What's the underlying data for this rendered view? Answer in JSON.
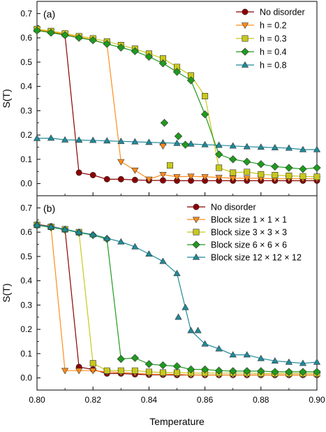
{
  "chart_data": [
    {
      "type": "line",
      "panel_label": "(a)",
      "xlabel": "",
      "ylabel": "S(T)",
      "xlim": [
        0.8,
        0.9
      ],
      "ylim": [
        -0.05,
        0.75
      ],
      "x_ticks": [],
      "y_ticks": [
        "0.0",
        "0.1",
        "0.2",
        "0.3",
        "0.4",
        "0.5",
        "0.6",
        "0.7"
      ],
      "y_tick_values": [
        0.0,
        0.1,
        0.2,
        0.3,
        0.4,
        0.5,
        0.6,
        0.7
      ],
      "grid": false,
      "legend_position": "top-right",
      "series": [
        {
          "name": "No disorder",
          "color": "#8b0000",
          "marker": "circle",
          "x": [
            0.8,
            0.805,
            0.81,
            0.815,
            0.82,
            0.825,
            0.83,
            0.835,
            0.84,
            0.845,
            0.85,
            0.855,
            0.86,
            0.865,
            0.87,
            0.875,
            0.88,
            0.885,
            0.89,
            0.895,
            0.9
          ],
          "y": [
            0.632,
            0.624,
            0.612,
            0.045,
            0.035,
            0.018,
            0.018,
            0.015,
            0.013,
            0.013,
            0.012,
            0.012,
            0.012,
            0.012,
            0.012,
            0.012,
            0.012,
            0.012,
            0.012,
            0.012,
            0.012
          ]
        },
        {
          "name": "h = 0.2",
          "color": "#ff8c1a",
          "marker": "triangle-down",
          "x": [
            0.8,
            0.805,
            0.81,
            0.815,
            0.82,
            0.825,
            0.83,
            0.835,
            0.84,
            0.845,
            0.85,
            0.855,
            0.86,
            0.865,
            0.87,
            0.875,
            0.88,
            0.885,
            0.89,
            0.895,
            0.9
          ],
          "y": [
            0.633,
            0.625,
            0.615,
            0.603,
            0.592,
            0.575,
            0.09,
            0.055,
            0.018,
            0.037,
            0.028,
            0.03,
            0.028,
            0.025,
            0.022,
            0.022,
            0.022,
            0.02,
            0.02,
            0.02,
            0.02
          ]
        },
        {
          "name": "h = 0.3",
          "color": "#c8c81e",
          "marker": "square",
          "x": [
            0.8,
            0.805,
            0.81,
            0.815,
            0.82,
            0.825,
            0.83,
            0.835,
            0.84,
            0.845,
            0.85,
            0.855,
            0.86,
            0.865,
            0.87,
            0.875,
            0.88,
            0.885,
            0.89,
            0.895,
            0.9
          ],
          "y": [
            0.636,
            0.628,
            0.618,
            0.607,
            0.598,
            0.585,
            0.57,
            0.555,
            0.535,
            0.515,
            0.48,
            0.445,
            0.36,
            0.065,
            0.045,
            0.048,
            0.038,
            0.035,
            0.032,
            0.03,
            0.028
          ]
        },
        {
          "name": "h = 0.4",
          "color": "#1f9a1f",
          "marker": "diamond",
          "x": [
            0.8,
            0.805,
            0.81,
            0.815,
            0.82,
            0.825,
            0.83,
            0.835,
            0.84,
            0.845,
            0.85,
            0.855,
            0.86,
            0.865,
            0.87,
            0.875,
            0.88,
            0.885,
            0.89,
            0.895,
            0.9
          ],
          "y": [
            0.63,
            0.621,
            0.611,
            0.6,
            0.59,
            0.575,
            0.56,
            0.545,
            0.522,
            0.495,
            0.46,
            0.425,
            0.285,
            0.12,
            0.1,
            0.09,
            0.08,
            0.07,
            0.065,
            0.06,
            0.065
          ]
        },
        {
          "name": "h = 0.8",
          "color": "#1f8a9a",
          "marker": "triangle-up",
          "x": [
            0.8,
            0.805,
            0.81,
            0.815,
            0.82,
            0.825,
            0.83,
            0.835,
            0.84,
            0.845,
            0.85,
            0.855,
            0.86,
            0.865,
            0.87,
            0.875,
            0.88,
            0.885,
            0.89,
            0.895,
            0.9
          ],
          "y": [
            0.186,
            0.187,
            0.18,
            0.179,
            0.178,
            0.176,
            0.174,
            0.172,
            0.17,
            0.168,
            0.166,
            0.163,
            0.16,
            0.158,
            0.155,
            0.152,
            0.15,
            0.148,
            0.146,
            0.14,
            0.14
          ]
        }
      ],
      "extra_markers": [
        {
          "series_index": 1,
          "x": 0.845,
          "y": 0.155
        },
        {
          "series_index": 2,
          "x": 0.8475,
          "y": 0.075
        },
        {
          "series_index": 3,
          "x": 0.8455,
          "y": 0.25
        },
        {
          "series_index": 3,
          "x": 0.8505,
          "y": 0.195
        },
        {
          "series_index": 3,
          "x": 0.853,
          "y": 0.16
        }
      ]
    },
    {
      "type": "line",
      "panel_label": "(b)",
      "xlabel": "Temperature",
      "ylabel": "S(T)",
      "xlim": [
        0.8,
        0.9
      ],
      "ylim": [
        -0.05,
        0.75
      ],
      "x_ticks": [
        "0.80",
        "0.82",
        "0.84",
        "0.86",
        "0.88",
        "0.90"
      ],
      "x_tick_values": [
        0.8,
        0.82,
        0.84,
        0.86,
        0.88,
        0.9
      ],
      "y_ticks": [
        "0.0",
        "0.1",
        "0.2",
        "0.3",
        "0.4",
        "0.5",
        "0.6",
        "0.7"
      ],
      "y_tick_values": [
        0.0,
        0.1,
        0.2,
        0.3,
        0.4,
        0.5,
        0.6,
        0.7
      ],
      "grid": false,
      "legend_position": "top-right",
      "series": [
        {
          "name": "No disorder",
          "color": "#8b0000",
          "marker": "circle",
          "x": [
            0.8,
            0.805,
            0.81,
            0.815,
            0.82,
            0.825,
            0.83,
            0.835,
            0.84,
            0.845,
            0.85,
            0.855,
            0.86,
            0.865,
            0.87,
            0.875,
            0.88,
            0.885,
            0.89,
            0.895,
            0.9
          ],
          "y": [
            0.632,
            0.624,
            0.612,
            0.045,
            0.035,
            0.018,
            0.018,
            0.015,
            0.013,
            0.013,
            0.012,
            0.012,
            0.012,
            0.012,
            0.012,
            0.012,
            0.012,
            0.012,
            0.012,
            0.012,
            0.012
          ]
        },
        {
          "name": "Block size 1 × 1 × 1",
          "color": "#ff8c1a",
          "marker": "triangle-down",
          "x": [
            0.8,
            0.805,
            0.81,
            0.815,
            0.82,
            0.825,
            0.83,
            0.835,
            0.84,
            0.845,
            0.85,
            0.855,
            0.86,
            0.865,
            0.87,
            0.875,
            0.88,
            0.885,
            0.89,
            0.895,
            0.9
          ],
          "y": [
            0.63,
            0.62,
            0.03,
            0.03,
            0.03,
            0.025,
            0.022,
            0.02,
            0.015,
            0.015,
            0.015,
            0.012,
            0.012,
            0.012,
            0.012,
            0.012,
            0.012,
            0.012,
            0.012,
            0.012,
            0.012
          ]
        },
        {
          "name": "Block size 3 × 3 × 3",
          "color": "#c8c81e",
          "marker": "square",
          "x": [
            0.8,
            0.805,
            0.81,
            0.815,
            0.82,
            0.825,
            0.83,
            0.835,
            0.84,
            0.845,
            0.85,
            0.855,
            0.86,
            0.865,
            0.87,
            0.875,
            0.88,
            0.885,
            0.89,
            0.895,
            0.9
          ],
          "y": [
            0.63,
            0.622,
            0.612,
            0.6,
            0.06,
            0.03,
            0.03,
            0.03,
            0.025,
            0.022,
            0.022,
            0.02,
            0.02,
            0.02,
            0.02,
            0.02,
            0.018,
            0.018,
            0.018,
            0.018,
            0.018
          ]
        },
        {
          "name": "Block size 6 × 6 × 6",
          "color": "#1f9a1f",
          "marker": "diamond",
          "x": [
            0.8,
            0.805,
            0.81,
            0.815,
            0.82,
            0.825,
            0.83,
            0.835,
            0.84,
            0.845,
            0.85,
            0.855,
            0.86,
            0.865,
            0.87,
            0.875,
            0.88,
            0.885,
            0.89,
            0.895,
            0.9
          ],
          "y": [
            0.628,
            0.62,
            0.61,
            0.598,
            0.588,
            0.572,
            0.078,
            0.082,
            0.057,
            0.052,
            0.048,
            0.035,
            0.035,
            0.03,
            0.028,
            0.028,
            0.028,
            0.025,
            0.025,
            0.025,
            0.025
          ]
        },
        {
          "name": "Block size 12 × 12 × 12",
          "color": "#1f8a9a",
          "marker": "triangle-up",
          "x": [
            0.8,
            0.805,
            0.81,
            0.815,
            0.82,
            0.825,
            0.83,
            0.835,
            0.84,
            0.845,
            0.85,
            0.855,
            0.86,
            0.865,
            0.87,
            0.875,
            0.88,
            0.885,
            0.89,
            0.895,
            0.9
          ],
          "y": [
            0.63,
            0.622,
            0.612,
            0.6,
            0.59,
            0.575,
            0.56,
            0.54,
            0.51,
            0.48,
            0.43,
            0.195,
            0.14,
            0.12,
            0.095,
            0.095,
            0.08,
            0.07,
            0.065,
            0.06,
            0.065
          ]
        }
      ],
      "extra_markers": [
        {
          "series_index": 4,
          "x": 0.8505,
          "y": 0.25
        },
        {
          "series_index": 4,
          "x": 0.853,
          "y": 0.29
        },
        {
          "series_index": 4,
          "x": 0.8575,
          "y": 0.195
        }
      ]
    }
  ]
}
